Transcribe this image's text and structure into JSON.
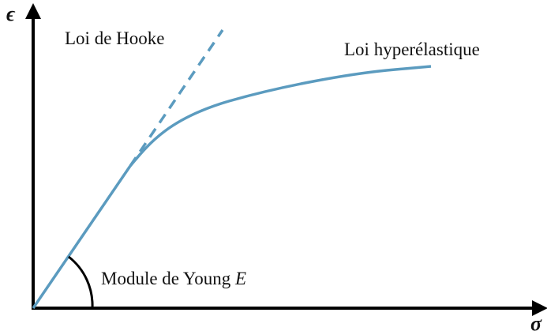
{
  "axes": {
    "y_label": "ϵ",
    "x_label": "σ"
  },
  "labels": {
    "hooke": "Loi de Hooke",
    "hyperelastic": "Loi hyperélastique",
    "young": "Module de Young",
    "young_symbol": "E"
  }
}
